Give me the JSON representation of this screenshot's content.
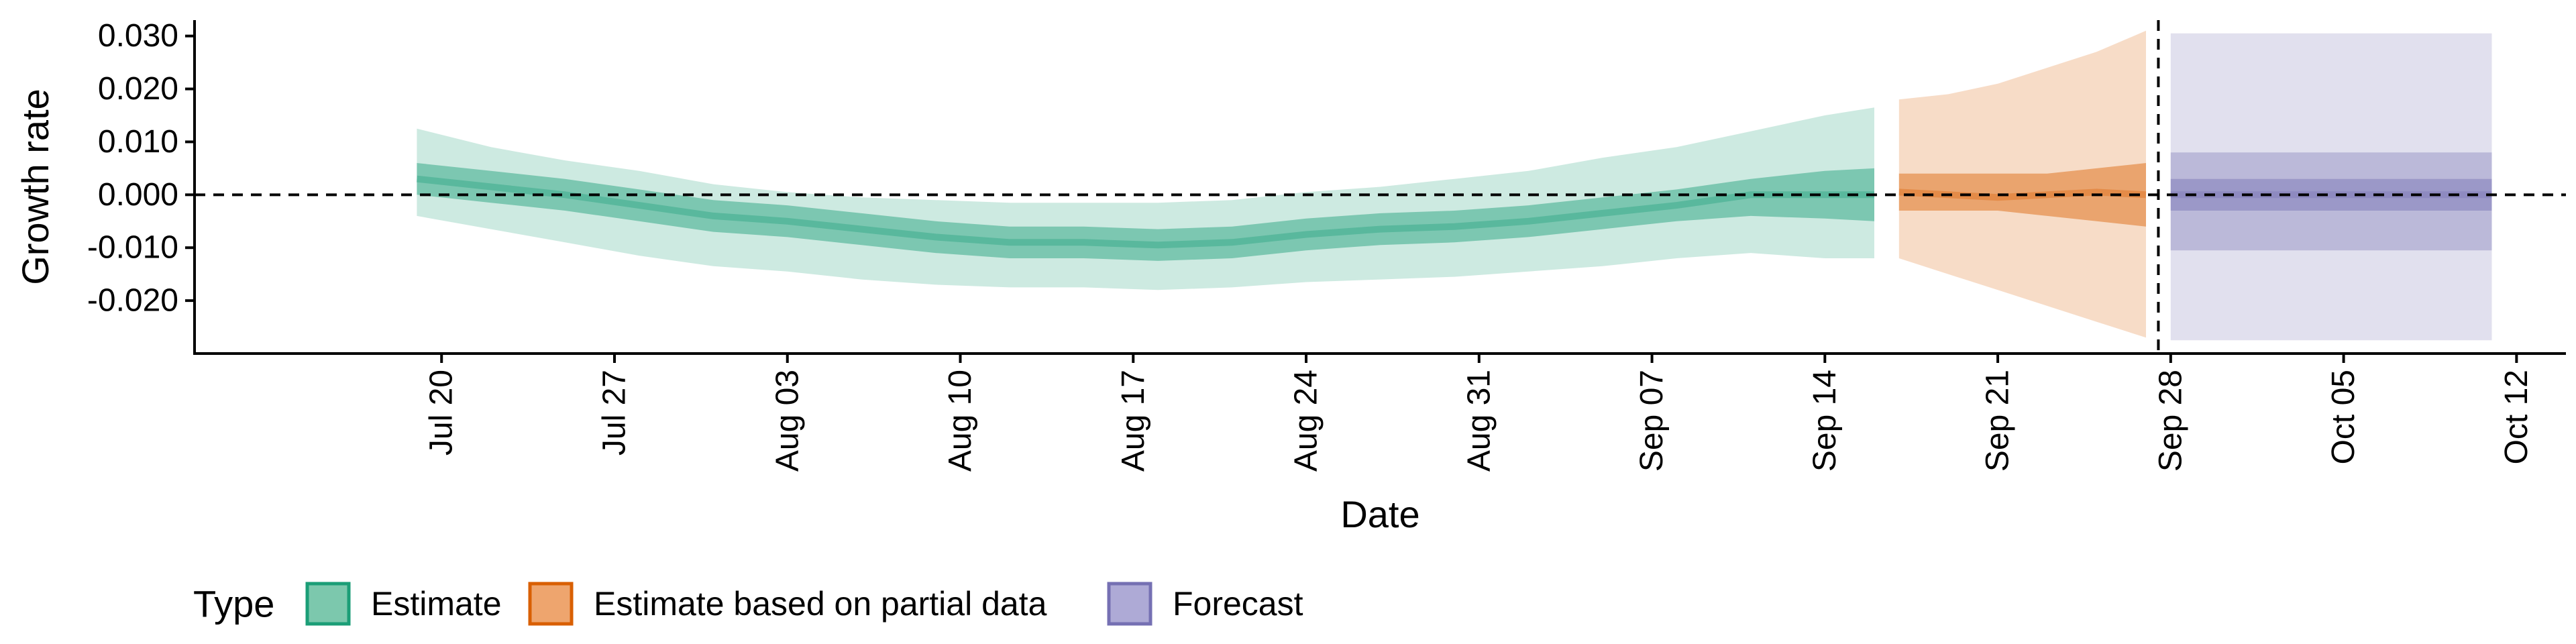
{
  "chart_data": {
    "type": "area",
    "xlabel": "Date",
    "ylabel": "Growth rate",
    "ylim": [
      -0.03,
      0.033
    ],
    "xlim": [
      "2020-07-10",
      "2020-10-14"
    ],
    "y_ticks": [
      -0.02,
      -0.01,
      0.0,
      0.01,
      0.02,
      0.03
    ],
    "y_tick_labels": [
      "-0.020",
      "-0.010",
      "0.000",
      "0.010",
      "0.020",
      "0.030"
    ],
    "x_ticks": [
      "2020-07-20",
      "2020-07-27",
      "2020-08-03",
      "2020-08-10",
      "2020-08-17",
      "2020-08-24",
      "2020-08-31",
      "2020-09-07",
      "2020-09-14",
      "2020-09-21",
      "2020-09-28",
      "2020-10-05",
      "2020-10-12"
    ],
    "x_tick_labels": [
      "Jul 20",
      "Jul 27",
      "Aug 03",
      "Aug 10",
      "Aug 17",
      "Aug 24",
      "Aug 31",
      "Sep 07",
      "Sep 14",
      "Sep 21",
      "Sep 28",
      "Oct 05",
      "Oct 12"
    ],
    "reference_lines": {
      "horizontal_y": 0.0,
      "vertical_x": "2020-09-27"
    },
    "grid": false,
    "legend_placement": "bottom-left",
    "legend": {
      "title": "Type",
      "entries": [
        {
          "label": "Estimate",
          "fill": "#7cc8ad",
          "stroke": "#1b9e77"
        },
        {
          "label": "Estimate based on partial data",
          "fill": "#eea56e",
          "stroke": "#d95f02"
        },
        {
          "label": "Forecast",
          "fill": "#aeaad6",
          "stroke": "#7570b3"
        }
      ]
    },
    "series": [
      {
        "name": "Estimate",
        "color": "#1b9e77",
        "x": [
          "2020-07-19",
          "2020-07-22",
          "2020-07-25",
          "2020-07-28",
          "2020-07-31",
          "2020-08-03",
          "2020-08-06",
          "2020-08-09",
          "2020-08-12",
          "2020-08-15",
          "2020-08-18",
          "2020-08-21",
          "2020-08-24",
          "2020-08-27",
          "2020-08-30",
          "2020-09-02",
          "2020-09-05",
          "2020-09-08",
          "2020-09-11",
          "2020-09-14",
          "2020-09-16"
        ],
        "median": [
          0.003,
          0.0015,
          0.0,
          -0.002,
          -0.004,
          -0.005,
          -0.0065,
          -0.008,
          -0.009,
          -0.009,
          -0.0095,
          -0.009,
          -0.0075,
          -0.0065,
          -0.006,
          -0.005,
          -0.0035,
          -0.002,
          0.0,
          0.0,
          0.0
        ],
        "lower50": [
          0.0,
          -0.0015,
          -0.003,
          -0.005,
          -0.007,
          -0.008,
          -0.0095,
          -0.011,
          -0.012,
          -0.012,
          -0.0125,
          -0.012,
          -0.0105,
          -0.0095,
          -0.009,
          -0.008,
          -0.0065,
          -0.005,
          -0.004,
          -0.0045,
          -0.005
        ],
        "upper50": [
          0.006,
          0.0045,
          0.003,
          0.001,
          -0.001,
          -0.002,
          -0.0035,
          -0.005,
          -0.006,
          -0.006,
          -0.0065,
          -0.006,
          -0.0045,
          -0.0035,
          -0.003,
          -0.002,
          -0.0005,
          0.001,
          0.003,
          0.0045,
          0.005
        ],
        "lower90": [
          -0.004,
          -0.0065,
          -0.009,
          -0.0115,
          -0.0135,
          -0.0145,
          -0.016,
          -0.017,
          -0.0175,
          -0.0175,
          -0.018,
          -0.0175,
          -0.0165,
          -0.016,
          -0.0155,
          -0.0145,
          -0.0135,
          -0.012,
          -0.011,
          -0.012,
          -0.012
        ],
        "upper90": [
          0.0125,
          0.009,
          0.0065,
          0.0045,
          0.002,
          0.0005,
          -0.0005,
          -0.001,
          -0.0015,
          -0.0015,
          -0.0015,
          -0.001,
          0.0005,
          0.0015,
          0.003,
          0.0045,
          0.007,
          0.009,
          0.012,
          0.015,
          0.0165
        ]
      },
      {
        "name": "Estimate based on partial data",
        "color": "#d95f02",
        "x": [
          "2020-09-17",
          "2020-09-19",
          "2020-09-21",
          "2020-09-23",
          "2020-09-25",
          "2020-09-27"
        ],
        "median": [
          0.0005,
          0.0,
          -0.0005,
          0.0,
          0.0005,
          0.0
        ],
        "lower50": [
          -0.003,
          -0.003,
          -0.003,
          -0.004,
          -0.005,
          -0.006
        ],
        "upper50": [
          0.004,
          0.004,
          0.004,
          0.004,
          0.005,
          0.006
        ],
        "lower90": [
          -0.012,
          -0.015,
          -0.018,
          -0.021,
          -0.024,
          -0.027
        ],
        "upper90": [
          0.018,
          0.019,
          0.021,
          0.024,
          0.027,
          0.031
        ]
      },
      {
        "name": "Forecast",
        "color": "#7570b3",
        "x": [
          "2020-09-28",
          "2020-10-11"
        ],
        "median": [
          0.0,
          0.0
        ],
        "lower50": [
          -0.003,
          -0.003
        ],
        "upper50": [
          0.003,
          0.003
        ],
        "lower75": [
          -0.0105,
          -0.0105
        ],
        "upper75": [
          0.008,
          0.008
        ],
        "lower90": [
          -0.0275,
          -0.0275
        ],
        "upper90": [
          0.0305,
          0.0305
        ]
      }
    ]
  }
}
